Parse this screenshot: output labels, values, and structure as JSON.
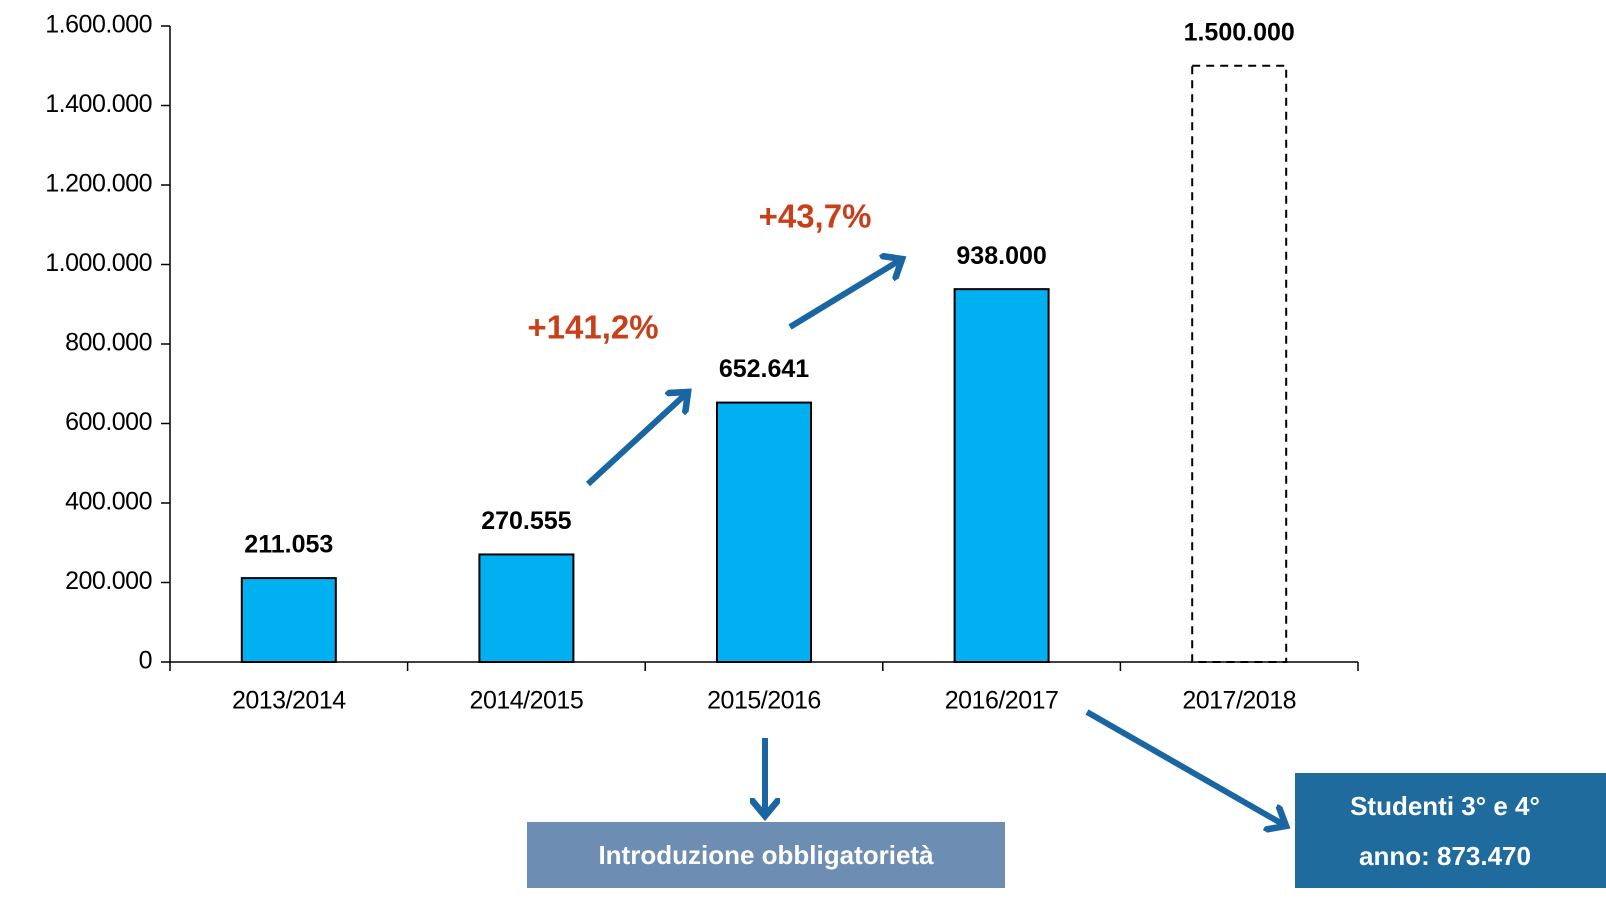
{
  "chart_data": {
    "type": "bar",
    "categories": [
      "2013/2014",
      "2014/2015",
      "2015/2016",
      "2016/2017",
      "2017/2018"
    ],
    "values": [
      211053,
      270555,
      652641,
      938000,
      1500000
    ],
    "value_labels": [
      "211.053",
      "270.555",
      "652.641",
      "938.000",
      "1.500.000"
    ],
    "color": "#00b0f0",
    "styles": [
      "solid",
      "solid",
      "solid",
      "solid",
      "dashed"
    ],
    "ylim": [
      0,
      1600000
    ],
    "yticks": [
      0,
      {
        "value": 200000,
        "label": "200.000"
      },
      {
        "value": 400000,
        "label": "400.000"
      },
      {
        "value": 600000,
        "label": "600.000"
      },
      {
        "value": 800000,
        "label": "800.000"
      },
      {
        "value": 1000000,
        "label": "1.000.000"
      },
      {
        "value": 1200000,
        "label": "1.200.000"
      },
      {
        "value": 1400000,
        "label": "1.400.000"
      },
      {
        "value": 1600000,
        "label": "1.600.000"
      }
    ],
    "grid": false,
    "annotations": [
      {
        "text": "+141,2%"
      },
      {
        "text": "+43,7%"
      },
      {
        "text": "Introduzione obbligatorietà"
      },
      {
        "lines": [
          "Studenti 3° e 4°",
          "anno: 873.470"
        ]
      }
    ]
  }
}
